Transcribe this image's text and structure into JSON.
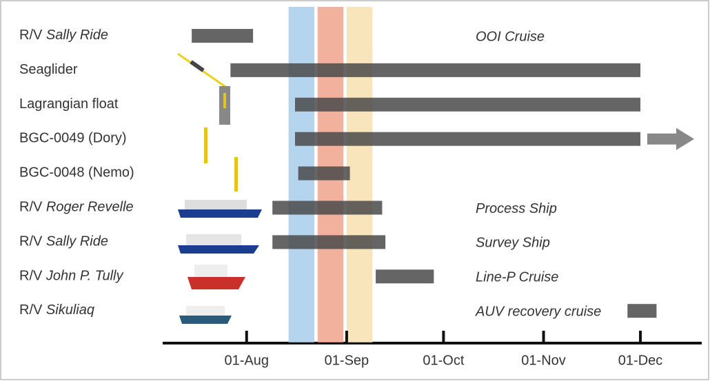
{
  "chart_data": {
    "type": "timeline",
    "rows": [
      {
        "label": "R/V",
        "label_italic": "Sally Ride",
        "start": "07-15",
        "end": "08-03",
        "note": "OOI Cruise"
      },
      {
        "label": "Seaglider",
        "start": "07-27",
        "end": "12-01"
      },
      {
        "label": "Lagrangian float",
        "start": "08-16",
        "end": "12-01"
      },
      {
        "label": "BGC-0049 (Dory)",
        "start": "08-16",
        "end": "12-01",
        "arrow": true
      },
      {
        "label": "BGC-0048 (Nemo)",
        "start": "08-17",
        "end": "09-02"
      },
      {
        "label": "R/V",
        "label_italic": "Roger Revelle",
        "start": "08-09",
        "end": "09-12",
        "note": "Process Ship"
      },
      {
        "label": "R/V",
        "label_italic": "Sally Ride",
        "start": "08-09",
        "end": "09-13",
        "note": "Survey Ship"
      },
      {
        "label": "R/V",
        "label_italic": "John P. Tully",
        "start": "09-10",
        "end": "09-28",
        "note": "Line-P Cruise"
      },
      {
        "label": "R/V",
        "label_italic": "Sikuliaq",
        "start": "11-27",
        "end": "12-06",
        "note": "AUV recovery cruise"
      }
    ],
    "bands": [
      {
        "start": "08-14",
        "end": "08-22",
        "color": "#a8cdea"
      },
      {
        "start": "08-23",
        "end": "08-31",
        "color": "#eea38c"
      },
      {
        "start": "09-01",
        "end": "09-09",
        "color": "#f8e0b0"
      }
    ],
    "xlim": [
      "07-06",
      "12-20"
    ],
    "xticks": [
      {
        "value": "08-01",
        "label": "01-Aug"
      },
      {
        "value": "09-01",
        "label": "01-Sep"
      },
      {
        "value": "10-01",
        "label": "01-Oct"
      },
      {
        "value": "11-01",
        "label": "01-Nov"
      },
      {
        "value": "12-01",
        "label": "01-Dec"
      }
    ],
    "bar_color": "#4a4a4a",
    "note_color": "#2b3f7c"
  }
}
